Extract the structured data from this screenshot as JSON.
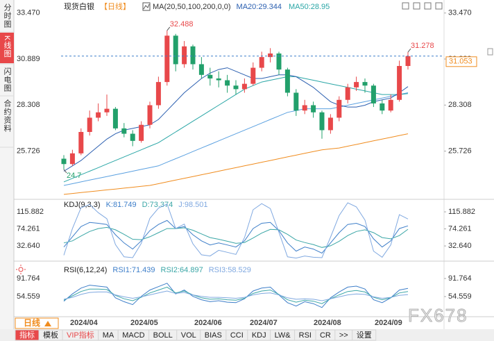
{
  "tabs": [
    "分时图",
    "K线图",
    "闪电图",
    "合约资料"
  ],
  "period": "日线",
  "watermark": "FX678",
  "toolbar": [
    "指标",
    "模板",
    "VIP指标",
    "MA",
    "MACD",
    "BOLL",
    "VOL",
    "BIAS",
    "CCI",
    "KDJ",
    "LW&",
    "RSI",
    "CR",
    ">>",
    "设置"
  ],
  "x_labels": [
    "2024/04",
    "2024/05",
    "2024/06",
    "2024/07",
    "2024/08",
    "2024/09"
  ],
  "chart_data": [
    {
      "type": "candlestick",
      "title": "现货白银",
      "subtitle": "【日线】",
      "indicator": "MA(20,50,100,200,0,0)",
      "up_color": "#e8484a",
      "down_color": "#22a06b",
      "ylim": [
        23.1,
        34.2
      ],
      "yticks": [
        {
          "value": 33.47,
          "label": "33.470"
        },
        30.889,
        28.308,
        25.726
      ],
      "ohlc": [
        [
          25.3,
          25.5,
          24.7,
          25.0
        ],
        [
          25.0,
          25.8,
          24.9,
          25.6
        ],
        [
          25.6,
          27.0,
          25.5,
          26.8
        ],
        [
          26.8,
          28.0,
          26.6,
          27.6
        ],
        [
          27.6,
          28.4,
          27.4,
          27.9
        ],
        [
          27.9,
          28.9,
          27.7,
          28.1
        ],
        [
          28.1,
          28.2,
          26.9,
          27.0
        ],
        [
          27.0,
          27.3,
          26.5,
          26.7
        ],
        [
          26.7,
          26.9,
          26.0,
          26.3
        ],
        [
          26.3,
          27.4,
          26.2,
          27.2
        ],
        [
          27.2,
          28.5,
          27.0,
          28.3
        ],
        [
          28.3,
          29.9,
          28.1,
          29.6
        ],
        [
          29.6,
          32.488,
          29.4,
          32.2
        ],
        [
          32.2,
          32.3,
          30.2,
          30.6
        ],
        [
          30.6,
          31.9,
          30.4,
          31.6
        ],
        [
          31.6,
          31.7,
          30.3,
          30.6
        ],
        [
          30.6,
          31.0,
          29.8,
          30.0
        ],
        [
          30.0,
          30.4,
          29.4,
          29.8
        ],
        [
          29.8,
          30.2,
          29.3,
          29.7
        ],
        [
          29.7,
          30.0,
          29.0,
          29.4
        ],
        [
          29.4,
          29.7,
          28.9,
          29.2
        ],
        [
          29.2,
          29.8,
          29.0,
          29.5
        ],
        [
          29.5,
          30.7,
          29.4,
          30.4
        ],
        [
          30.4,
          31.3,
          30.2,
          31.0
        ],
        [
          31.0,
          31.5,
          30.7,
          31.2
        ],
        [
          31.2,
          31.3,
          30.0,
          30.3
        ],
        [
          30.3,
          30.4,
          28.8,
          29.0
        ],
        [
          29.0,
          29.2,
          27.7,
          28.0
        ],
        [
          28.0,
          28.6,
          27.8,
          28.3
        ],
        [
          28.3,
          28.5,
          27.6,
          27.9
        ],
        [
          27.9,
          28.0,
          26.421,
          26.9
        ],
        [
          26.9,
          27.8,
          26.7,
          27.6
        ],
        [
          27.6,
          28.8,
          27.4,
          28.6
        ],
        [
          28.6,
          29.5,
          28.4,
          29.3
        ],
        [
          29.3,
          29.9,
          29.1,
          29.6
        ],
        [
          29.6,
          29.8,
          29.0,
          29.4
        ],
        [
          29.4,
          29.5,
          28.2,
          28.4
        ],
        [
          28.4,
          28.6,
          27.8,
          28.0
        ],
        [
          28.0,
          28.9,
          27.9,
          28.6
        ],
        [
          28.6,
          30.8,
          28.5,
          30.5
        ],
        [
          30.5,
          31.278,
          30.3,
          31.053
        ]
      ],
      "series": [
        {
          "name": "MA20:29.344",
          "color": "#2b5fb0",
          "values": [
            24.6,
            24.9,
            25.2,
            25.6,
            26.0,
            26.4,
            26.7,
            26.9,
            27.0,
            27.1,
            27.2,
            27.5,
            28.0,
            28.5,
            29.0,
            29.4,
            29.8,
            30.1,
            30.3,
            30.4,
            30.2,
            30.0,
            29.8,
            29.8,
            29.9,
            30.0,
            30.0,
            29.9,
            29.6,
            29.3,
            28.9,
            28.5,
            28.3,
            28.2,
            28.2,
            28.3,
            28.5,
            28.6,
            28.7,
            29.0,
            29.344
          ]
        },
        {
          "name": "MA50:28.95",
          "color": "#2aa6a6",
          "values": [
            24.0,
            24.2,
            24.4,
            24.6,
            24.8,
            25.0,
            25.2,
            25.4,
            25.6,
            25.8,
            26.0,
            26.2,
            26.5,
            26.8,
            27.1,
            27.4,
            27.7,
            28.0,
            28.3,
            28.6,
            28.9,
            29.2,
            29.4,
            29.6,
            29.7,
            29.8,
            29.9,
            29.9,
            29.8,
            29.7,
            29.6,
            29.5,
            29.4,
            29.3,
            29.2,
            29.1,
            29.0,
            28.9,
            28.9,
            28.9,
            28.95
          ]
        },
        {
          "color": "#5aa0e0",
          "values": [
            23.8,
            23.9,
            24.0,
            24.1,
            24.2,
            24.3,
            24.4,
            24.5,
            24.6,
            24.7,
            24.8,
            24.9,
            25.1,
            25.3,
            25.5,
            25.7,
            25.9,
            26.1,
            26.3,
            26.5,
            26.7,
            26.9,
            27.1,
            27.3,
            27.5,
            27.7,
            27.9,
            28.0,
            28.1,
            28.1,
            28.1,
            28.1,
            28.2,
            28.3,
            28.4,
            28.5,
            28.6,
            28.7,
            28.8,
            28.9,
            29.0
          ]
        },
        {
          "color": "#f08c1e",
          "values": [
            23.3,
            23.35,
            23.4,
            23.45,
            23.5,
            23.55,
            23.6,
            23.65,
            23.7,
            23.75,
            23.8,
            23.9,
            24.0,
            24.1,
            24.2,
            24.3,
            24.4,
            24.5,
            24.6,
            24.7,
            24.8,
            24.9,
            25.0,
            25.1,
            25.2,
            25.3,
            25.4,
            25.5,
            25.6,
            25.7,
            25.8,
            25.85,
            25.9,
            26.0,
            26.1,
            26.2,
            26.3,
            26.4,
            26.5,
            26.6,
            26.7
          ]
        }
      ]
    },
    {
      "type": "line",
      "title": "KDJ(9,3,3)",
      "ylim": [
        0.6,
        141.4
      ],
      "yticks": [
        115.882,
        74.261,
        {
          "value": 32.64,
          "label": "32.640"
        }
      ],
      "series": [
        {
          "name": "K:81.749",
          "color": "#3d7ec9",
          "values": [
            30,
            55,
            80,
            90,
            88,
            85,
            60,
            40,
            25,
            45,
            70,
            85,
            95,
            75,
            80,
            60,
            45,
            35,
            40,
            35,
            30,
            45,
            75,
            88,
            90,
            70,
            40,
            20,
            30,
            25,
            15,
            40,
            65,
            85,
            88,
            80,
            50,
            30,
            45,
            75,
            81.749
          ]
        },
        {
          "name": "D:73.374",
          "color": "#3aa6a6",
          "values": [
            40,
            45,
            57,
            68,
            75,
            78,
            72,
            61,
            49,
            48,
            55,
            65,
            75,
            75,
            77,
            71,
            62,
            53,
            49,
            44,
            39,
            41,
            52,
            64,
            73,
            72,
            61,
            47,
            41,
            36,
            29,
            33,
            44,
            58,
            68,
            72,
            65,
            53,
            50,
            58,
            73.374
          ]
        },
        {
          "name": "J:98.501",
          "color": "#7fa8e0",
          "values": [
            10,
            75,
            126,
            134,
            114,
            99,
            36,
            6,
            4,
            39,
            100,
            125,
            135,
            75,
            86,
            38,
            11,
            8,
            22,
            17,
            12,
            53,
            121,
            136,
            124,
            66,
            6,
            3,
            8,
            5,
            4,
            54,
            107,
            138,
            128,
            96,
            20,
            5,
            35,
            109,
            98.501
          ]
        }
      ]
    },
    {
      "type": "line",
      "title": "RSI(6,12,24)",
      "ylim": [
        14.5,
        121.8
      ],
      "yticks": [
        91.764,
        54.559
      ],
      "series": [
        {
          "name": "RSI1:71.439",
          "color": "#3d7ec9",
          "values": [
            45,
            60,
            72,
            78,
            76,
            74,
            52,
            44,
            38,
            55,
            68,
            75,
            82,
            60,
            68,
            55,
            48,
            44,
            46,
            43,
            42,
            50,
            66,
            72,
            74,
            58,
            42,
            35,
            44,
            40,
            32,
            52,
            64,
            74,
            76,
            70,
            48,
            42,
            52,
            68,
            71.439
          ]
        },
        {
          "name": "RSI2:64.897",
          "color": "#3aa6a6",
          "values": [
            47,
            56,
            65,
            70,
            70,
            69,
            57,
            50,
            46,
            53,
            62,
            68,
            74,
            62,
            66,
            58,
            52,
            49,
            50,
            48,
            47,
            51,
            61,
            66,
            68,
            59,
            48,
            43,
            47,
            45,
            40,
            50,
            58,
            65,
            67,
            64,
            53,
            48,
            52,
            62,
            64.897
          ]
        },
        {
          "name": "RSI3:58.529",
          "color": "#7fa8e0",
          "values": [
            49,
            53,
            59,
            63,
            64,
            64,
            58,
            54,
            51,
            54,
            58,
            62,
            66,
            61,
            63,
            58,
            55,
            53,
            53,
            52,
            51,
            53,
            58,
            61,
            62,
            58,
            52,
            49,
            50,
            49,
            46,
            50,
            54,
            58,
            60,
            59,
            54,
            51,
            53,
            57,
            58.529
          ]
        }
      ]
    }
  ]
}
